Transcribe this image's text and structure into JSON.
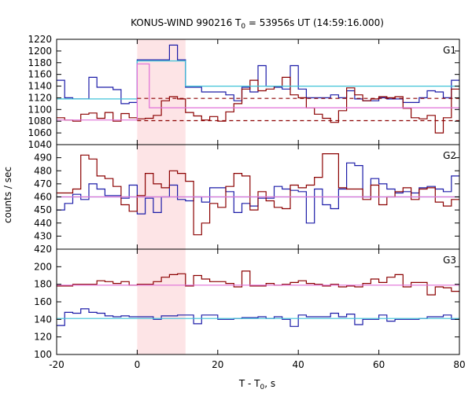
{
  "title": {
    "main": "KONUS-WIND 990216 T",
    "sub": "0",
    "rest": " = 53956s UT (14:59:16.000)"
  },
  "ylabel": "counts / sec",
  "xlabel": {
    "main": "T - T",
    "sub": "0",
    "rest": ", s"
  },
  "colors": {
    "red": "#8b0000",
    "blue": "#1c1ca8",
    "cyan": "#40c4d8",
    "pink": "#e070d8",
    "shade": "#fde4e6"
  },
  "chart_data": {
    "type": "line",
    "x": {
      "range": [
        -20,
        80
      ],
      "ticks": [
        -20,
        0,
        20,
        40,
        60,
        80
      ],
      "step": 2
    },
    "highlight": {
      "from": 0,
      "to": 12
    },
    "panels": [
      {
        "name": "G1",
        "ylim": [
          1040,
          1220
        ],
        "yticks": [
          1040,
          1060,
          1080,
          1100,
          1120,
          1140,
          1160,
          1180,
          1200,
          1220
        ],
        "start": -20,
        "series": [
          {
            "color": "blue",
            "values": [
              1150,
              1120,
              1118,
              1118,
              1155,
              1138,
              1138,
              1134,
              1110,
              1112,
              1185,
              1185,
              1185,
              1185,
              1210,
              1185,
              1138,
              1138,
              1130,
              1130,
              1130,
              1125,
              1115,
              1138,
              1130,
              1175,
              1140,
              1138,
              1135,
              1175,
              1135,
              1120,
              1120,
              1120,
              1125,
              1120,
              1132,
              1118,
              1115,
              1115,
              1120,
              1118,
              1118,
              1112,
              1112,
              1120,
              1132,
              1130,
              1120,
              1150
            ]
          },
          {
            "color": "red",
            "values": [
              1086,
              1082,
              1080,
              1092,
              1094,
              1085,
              1095,
              1080,
              1093,
              1086,
              1084,
              1085,
              1090,
              1115,
              1122,
              1118,
              1095,
              1089,
              1082,
              1088,
              1080,
              1096,
              1110,
              1135,
              1150,
              1132,
              1135,
              1140,
              1155,
              1125,
              1120,
              1103,
              1092,
              1085,
              1078,
              1098,
              1137,
              1125,
              1115,
              1118,
              1122,
              1120,
              1122,
              1102,
              1086,
              1084,
              1090,
              1060,
              1086,
              1135
            ]
          }
        ],
        "steps": [
          {
            "color": "cyan",
            "dash": false,
            "segments": [
              {
                "x": [
                  -20,
                  0
                ],
                "y": 1118
              },
              {
                "x": [
                  0,
                  12
                ],
                "y": 1183
              },
              {
                "x": [
                  12,
                  80
                ],
                "y": 1140
              }
            ]
          },
          {
            "color": "pink",
            "dash": false,
            "segments": [
              {
                "x": [
                  -20,
                  0
                ],
                "y": 1082
              },
              {
                "x": [
                  0,
                  3
                ],
                "y": 1178
              },
              {
                "x": [
                  3,
                  80
                ],
                "y": 1103
              }
            ]
          },
          {
            "color": "red",
            "dash": true,
            "segments": [
              {
                "x": [
                  0,
                  80
                ],
                "y": 1119
              }
            ]
          },
          {
            "color": "red",
            "dash": true,
            "segments": [
              {
                "x": [
                  0,
                  80
                ],
                "y": 1081
              }
            ]
          }
        ]
      },
      {
        "name": "G2",
        "ylim": [
          420,
          500
        ],
        "yticks": [
          420,
          430,
          440,
          450,
          460,
          470,
          480,
          490
        ],
        "start": -20,
        "series": [
          {
            "color": "blue",
            "values": [
              450,
              455,
              462,
              458,
              470,
              466,
              461,
              461,
              459,
              469,
              447,
              459,
              448,
              460,
              469,
              458,
              457,
              460,
              456,
              467,
              467,
              464,
              448,
              455,
              453,
              459,
              459,
              468,
              466,
              465,
              464,
              440,
              466,
              454,
              451,
              466,
              486,
              484,
              460,
              474,
              470,
              466,
              463,
              464,
              463,
              467,
              468,
              466,
              464,
              476
            ]
          },
          {
            "color": "red",
            "values": [
              463,
              463,
              466,
              492,
              489,
              476,
              474,
              468,
              454,
              449,
              461,
              478,
              470,
              467,
              480,
              478,
              472,
              431,
              440,
              455,
              452,
              468,
              478,
              476,
              450,
              464,
              457,
              452,
              451,
              469,
              467,
              469,
              475,
              493,
              493,
              467,
              466,
              466,
              458,
              469,
              454,
              460,
              464,
              467,
              458,
              466,
              467,
              456,
              453,
              458
            ]
          }
        ],
        "steps": [
          {
            "color": "cyan",
            "dash": false,
            "segments": [
              {
                "x": [
                  -20,
                  80
                ],
                "y": 460
              }
            ]
          },
          {
            "color": "pink",
            "dash": false,
            "segments": [
              {
                "x": [
                  -20,
                  80
                ],
                "y": 460
              }
            ]
          }
        ]
      },
      {
        "name": "G3",
        "ylim": [
          100,
          220
        ],
        "yticks": [
          100,
          120,
          140,
          160,
          180,
          200
        ],
        "start": -20,
        "series": [
          {
            "color": "red",
            "values": [
              178,
              178,
              180,
              180,
              180,
              184,
              183,
              181,
              183,
              179,
              180,
              180,
              183,
              188,
              191,
              192,
              178,
              190,
              186,
              183,
              183,
              181,
              177,
              195,
              178,
              178,
              181,
              179,
              180,
              182,
              184,
              181,
              180,
              178,
              180,
              177,
              178,
              177,
              181,
              186,
              182,
              188,
              191,
              177,
              182,
              182,
              168,
              177,
              176,
              172
            ]
          },
          {
            "color": "blue",
            "values": [
              133,
              148,
              147,
              152,
              148,
              147,
              144,
              143,
              144,
              143,
              143,
              143,
              140,
              144,
              144,
              145,
              145,
              135,
              145,
              145,
              140,
              140,
              141,
              142,
              142,
              143,
              141,
              143,
              140,
              132,
              145,
              143,
              143,
              143,
              147,
              143,
              146,
              134,
              140,
              140,
              145,
              138,
              140,
              140,
              140,
              141,
              143,
              143,
              145,
              140
            ]
          }
        ],
        "steps": [
          {
            "color": "pink",
            "dash": false,
            "segments": [
              {
                "x": [
                  -20,
                  80
                ],
                "y": 179
              }
            ]
          },
          {
            "color": "cyan",
            "dash": false,
            "segments": [
              {
                "x": [
                  -20,
                  80
                ],
                "y": 141
              }
            ]
          }
        ]
      }
    ]
  }
}
